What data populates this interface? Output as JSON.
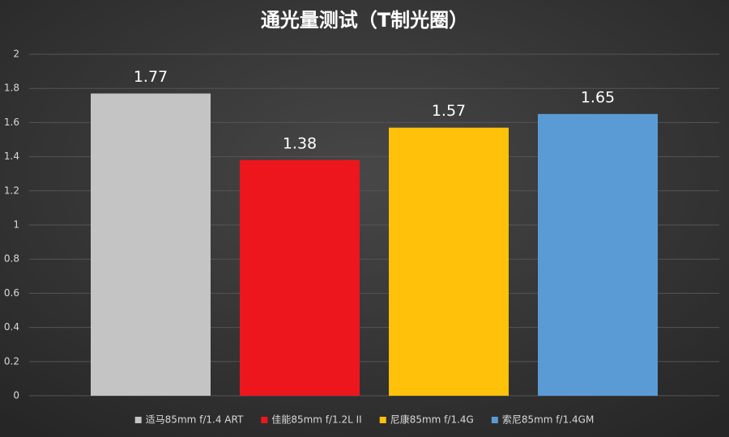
{
  "chart_data": {
    "type": "bar",
    "title": "通光量测试（T制光圈）",
    "series": [
      {
        "name": "适马85mm f/1.4 ART",
        "color": "#c4c4c4",
        "values": [
          1.77
        ]
      },
      {
        "name": "佳能85mm f/1.2L II",
        "color": "#ee161d",
        "values": [
          1.38
        ]
      },
      {
        "name": "尼康85mm f/1.4G",
        "color": "#ffc10a",
        "values": [
          1.57
        ]
      },
      {
        "name": "索尼85mm f/1.4GM",
        "color": "#5b9bd5",
        "values": [
          1.65
        ]
      }
    ],
    "ylim": [
      0,
      2
    ],
    "yticks": [
      0,
      0.2,
      0.4,
      0.6,
      0.8,
      1,
      1.2,
      1.4,
      1.6,
      1.8,
      2
    ],
    "grid": true,
    "legend": "bottom"
  }
}
